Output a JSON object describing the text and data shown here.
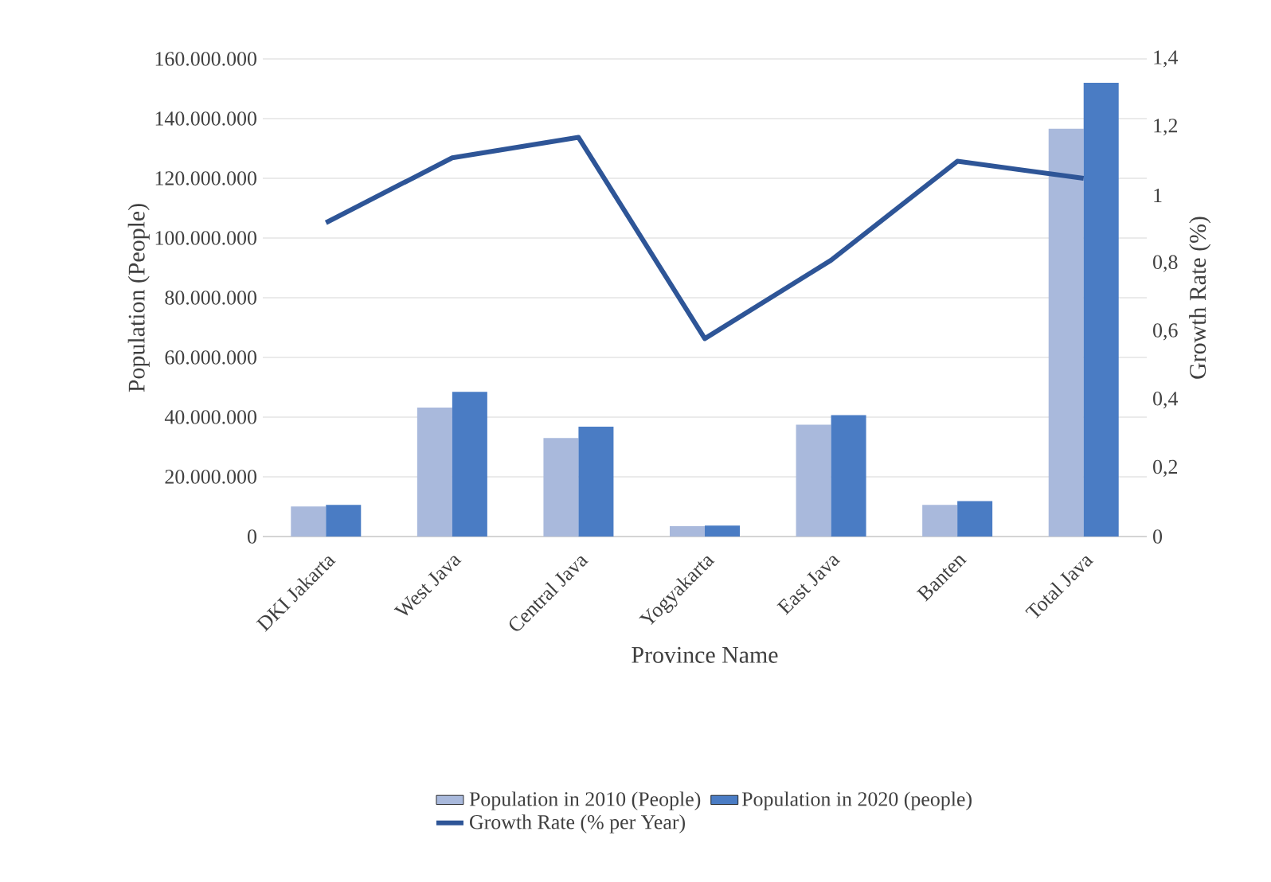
{
  "chart_data": {
    "type": "bar",
    "xlabel": "Province Name",
    "ylabel": "Population (People)",
    "y2label": "Growth Rate (%)",
    "categories": [
      "DKI Jakarta",
      "West Java",
      "Central Java",
      "Yogyakarta",
      "East Java",
      "Banten",
      "Total Java"
    ],
    "series": [
      {
        "name": "Population in 2010 (People)",
        "color": "#a9b9dc",
        "values": [
          10100000,
          43200000,
          33000000,
          3500000,
          37500000,
          10600000,
          136600000
        ]
      },
      {
        "name": "Population in 2020 (people)",
        "color": "#4a7cc4",
        "values": [
          10600000,
          48500000,
          36800000,
          3700000,
          40700000,
          11900000,
          152000000
        ]
      },
      {
        "name": "Growth Rate (% per Year)",
        "type": "line",
        "axis": "y2",
        "color": "#2e5597",
        "values": [
          0.92,
          1.11,
          1.17,
          0.58,
          0.81,
          1.1,
          1.05
        ]
      }
    ],
    "ylim": [
      0,
      160000000
    ],
    "yticks": [
      0,
      {
        "value": 20000000,
        "label": "20.000.000"
      },
      {
        "value": 40000000,
        "label": "40.000.000"
      },
      {
        "value": 60000000,
        "label": "60.000.000"
      },
      {
        "value": 80000000,
        "label": "80.000.000"
      },
      {
        "value": 100000000,
        "label": "100.000.000"
      },
      {
        "value": 120000000,
        "label": "120.000.000"
      },
      {
        "value": 140000000,
        "label": "140.000.000"
      },
      {
        "value": 160000000,
        "label": "160.000.000"
      }
    ],
    "y2lim": [
      0,
      1.4
    ],
    "y2ticks": [
      0,
      {
        "value": 0.2,
        "label": "0,2"
      },
      {
        "value": 0.4,
        "label": "0,4"
      },
      {
        "value": 0.6,
        "label": "0,6"
      },
      {
        "value": 0.8,
        "label": "0,8"
      },
      1,
      {
        "value": 1.2,
        "label": "1,2"
      },
      {
        "value": 1.4,
        "label": "1,4"
      }
    ],
    "grid": "y",
    "legend": "bottom",
    "marker": "none",
    "line_style": "solid"
  }
}
